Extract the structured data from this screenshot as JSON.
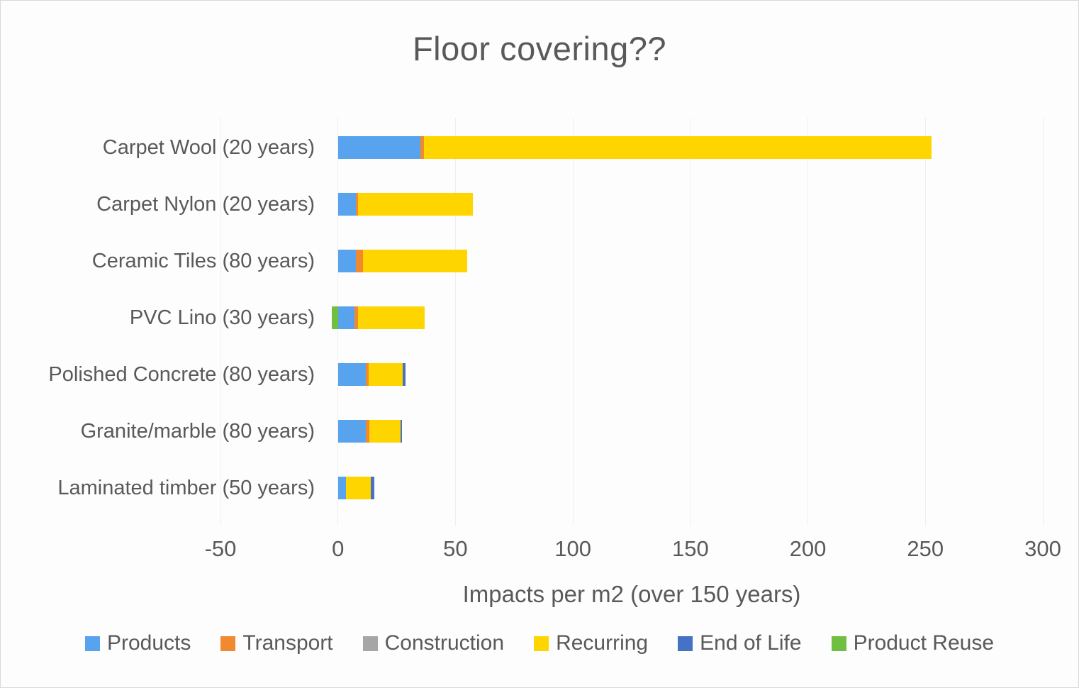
{
  "chart_data": {
    "type": "bar",
    "variant": "stacked-horizontal",
    "title": "Floor covering??",
    "xlabel": "Impacts per m2 (over 150 years)",
    "xlim": [
      -50,
      300
    ],
    "xticks": [
      -50,
      0,
      50,
      100,
      150,
      200,
      250,
      300
    ],
    "grid": true,
    "legend_position": "bottom",
    "categories": [
      "Carpet Wool (20 years)",
      "Carpet Nylon (20 years)",
      "Ceramic Tiles (80 years)",
      "PVC Lino (30 years)",
      "Polished Concrete (80 years)",
      "Granite/marble (80 years)",
      "Laminated timber (50 years)"
    ],
    "series": [
      {
        "name": "Products",
        "color": "#57A3EE",
        "values": [
          35,
          7.5,
          7.5,
          7,
          12,
          12,
          3.5
        ]
      },
      {
        "name": "Transport",
        "color": "#F18A2E",
        "values": [
          1.5,
          1,
          3,
          1.5,
          1,
          1.5,
          0
        ]
      },
      {
        "name": "Construction",
        "color": "#A6A6A6",
        "values": [
          0,
          0,
          0,
          0,
          0,
          0,
          0
        ]
      },
      {
        "name": "Recurring",
        "color": "#FFD500",
        "values": [
          216,
          49,
          44.5,
          28.5,
          14.5,
          13,
          10.5
        ]
      },
      {
        "name": "End of Life",
        "color": "#4472C4",
        "values": [
          0,
          0,
          0,
          0,
          1.3,
          0.8,
          1.5
        ]
      },
      {
        "name": "Product Reuse",
        "color": "#70BF41",
        "values": [
          0,
          0,
          0,
          -2.5,
          0,
          0,
          0
        ]
      }
    ],
    "totals_positive": [
      252.5,
      57.5,
      55,
      37,
      28.8,
      27.3,
      15.5
    ]
  }
}
